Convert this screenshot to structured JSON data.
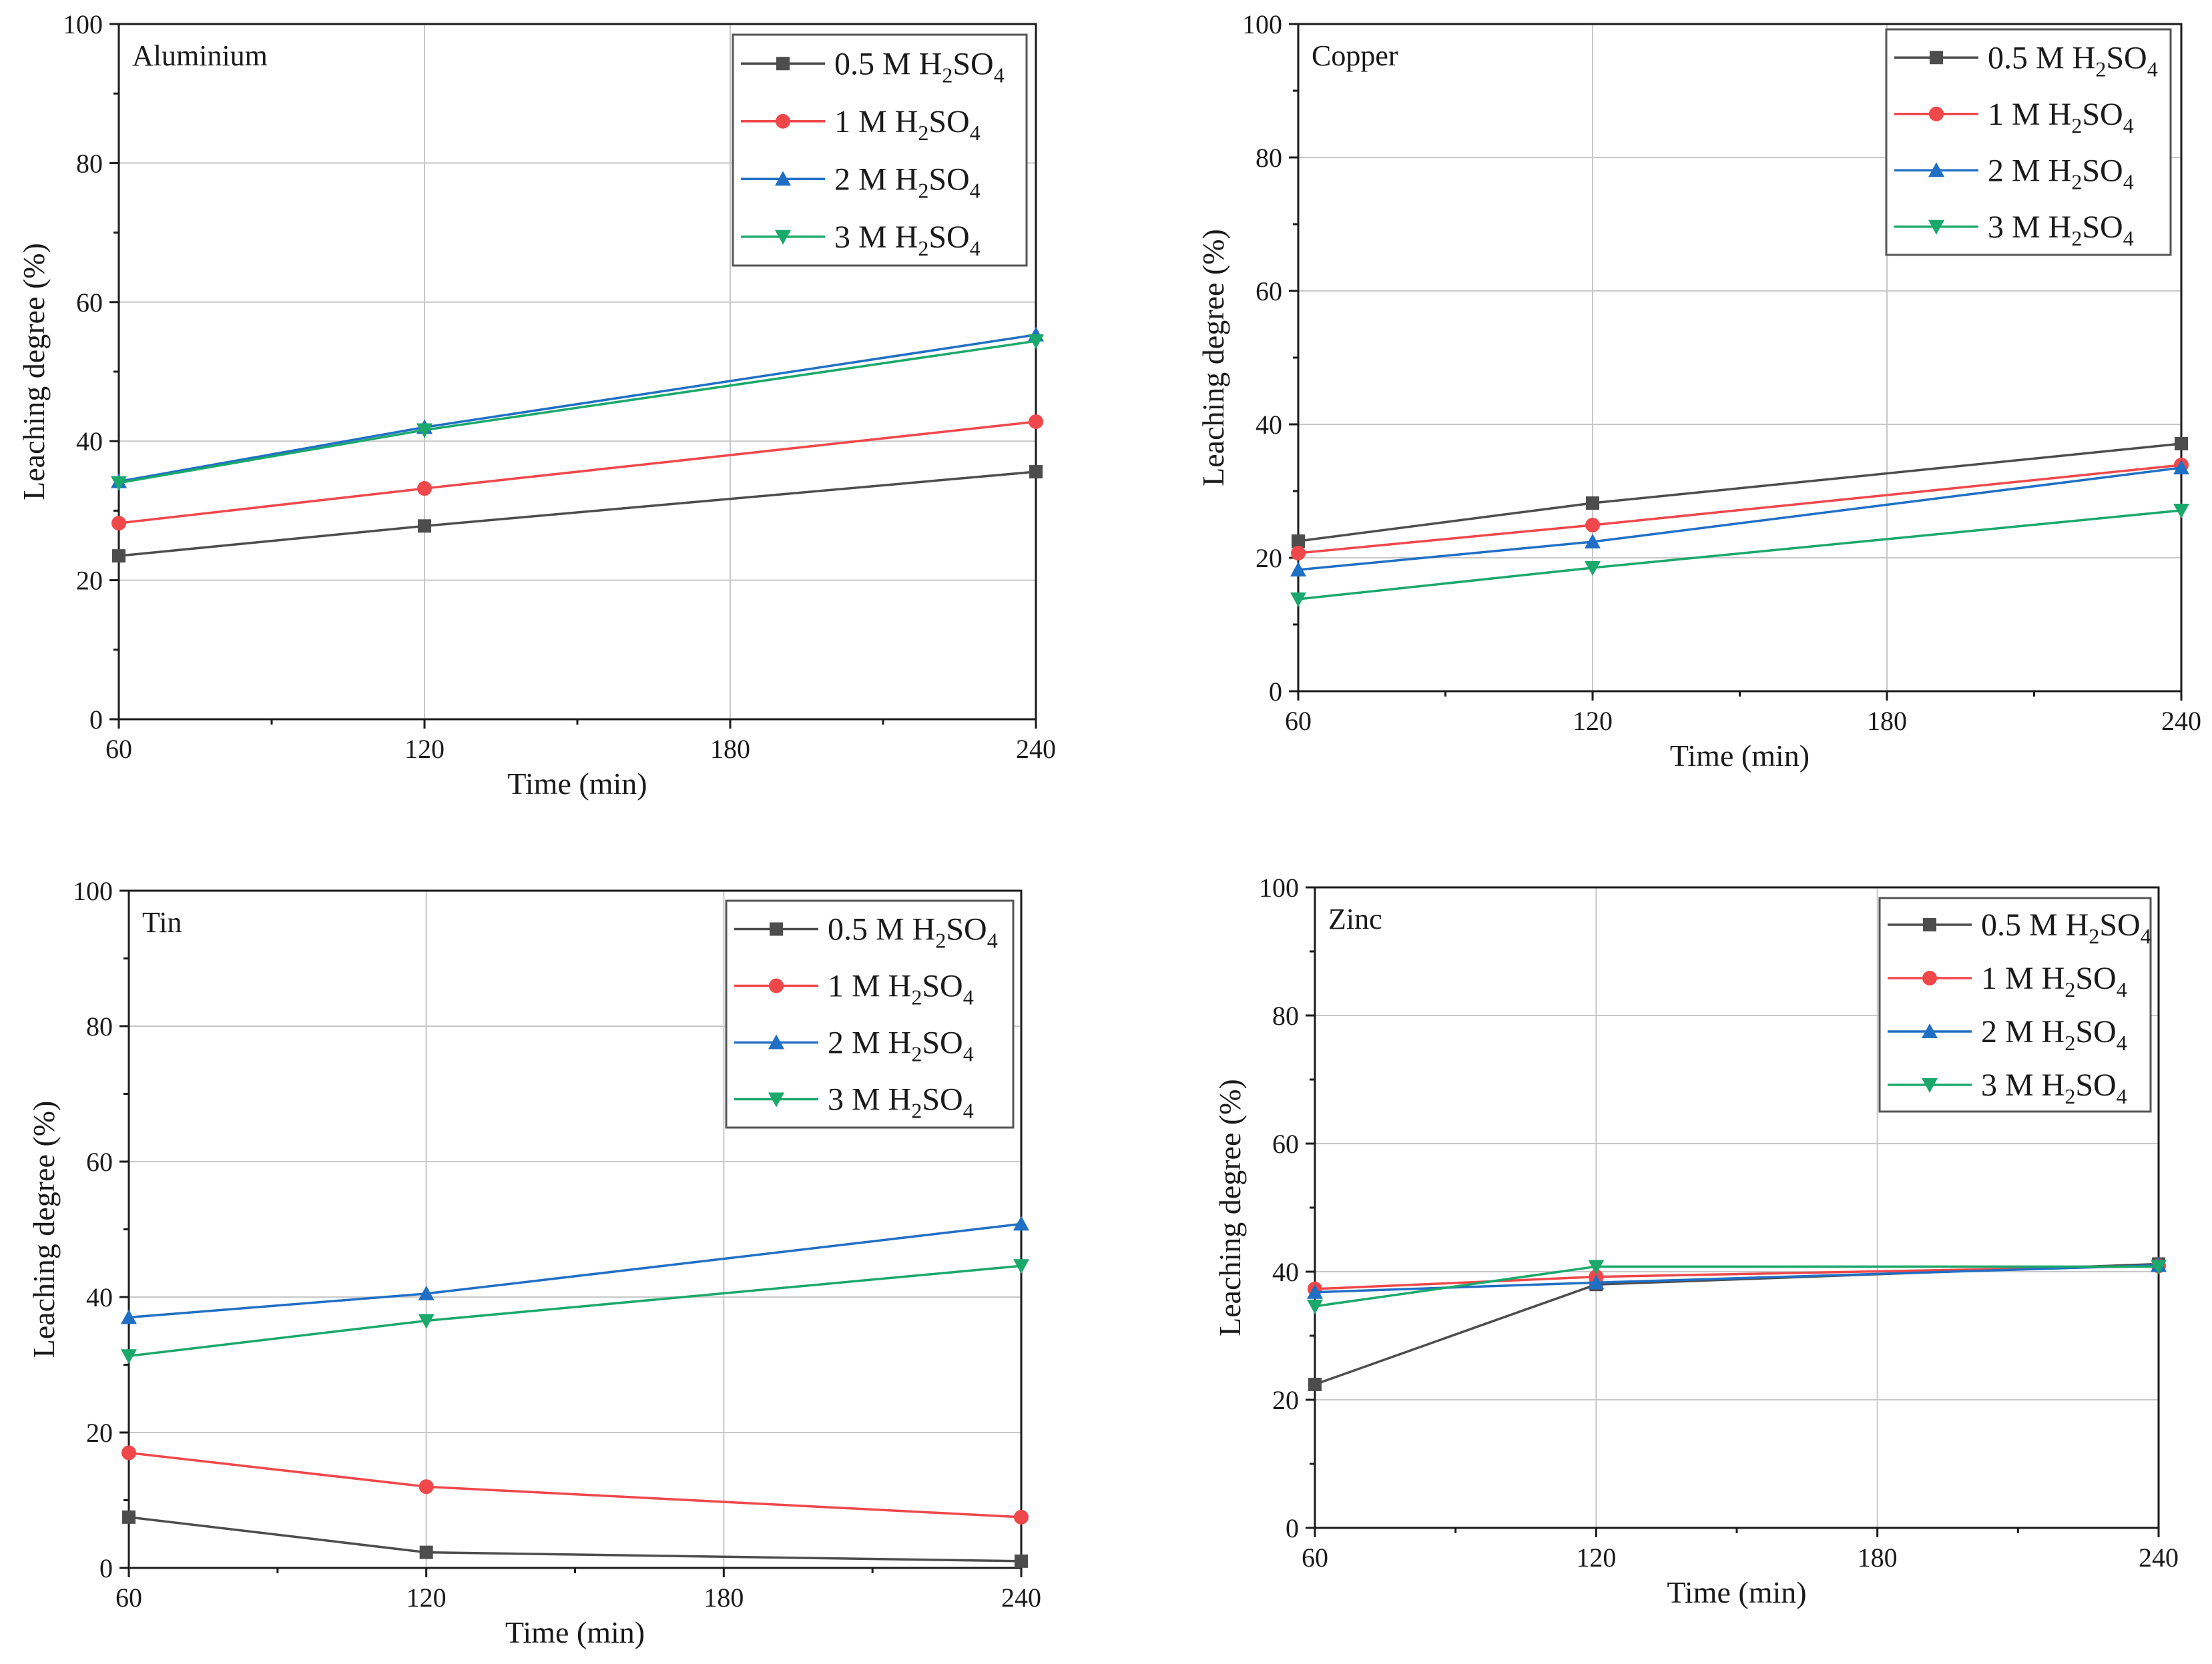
{
  "chart_data": [
    {
      "type": "line",
      "title": "Aluminium",
      "xlabel": "Time (min)",
      "ylabel": "Leaching degree (%)",
      "x": [
        60,
        120,
        240
      ],
      "xticks": [
        "60",
        "120",
        "180",
        "240"
      ],
      "yticks": [
        "0",
        "20",
        "40",
        "60",
        "80",
        "100"
      ],
      "xlim": [
        60,
        240
      ],
      "ylim": [
        0,
        100
      ],
      "grid": true,
      "legend_position": "top-right",
      "series": [
        {
          "name": "0.5 M H2SO4",
          "label_main": "0.5 M H",
          "label_sub1": "2",
          "label_mid": "SO",
          "label_sub2": "4",
          "values": [
            23.5,
            27.8,
            35.6
          ]
        },
        {
          "name": "1 M H2SO4",
          "label_main": "1 M H",
          "label_sub1": "2",
          "label_mid": "SO",
          "label_sub2": "4",
          "values": [
            28.2,
            33.2,
            42.8
          ]
        },
        {
          "name": "2 M H2SO4",
          "label_main": "2 M H",
          "label_sub1": "2",
          "label_mid": "SO",
          "label_sub2": "4",
          "values": [
            34.2,
            42.0,
            55.3
          ]
        },
        {
          "name": "3 M H2SO4",
          "label_main": "3 M H",
          "label_sub1": "2",
          "label_mid": "SO",
          "label_sub2": "4",
          "values": [
            34.0,
            41.6,
            54.4
          ]
        }
      ]
    },
    {
      "type": "line",
      "title": "Copper",
      "xlabel": "Time (min)",
      "ylabel": "Leaching degree (%)",
      "x": [
        60,
        120,
        240
      ],
      "xticks": [
        "60",
        "120",
        "180",
        "240"
      ],
      "yticks": [
        "0",
        "20",
        "40",
        "60",
        "80",
        "100"
      ],
      "xlim": [
        60,
        240
      ],
      "ylim": [
        0,
        100
      ],
      "grid": true,
      "legend_position": "top-right",
      "series": [
        {
          "name": "0.5 M H2SO4",
          "label_main": "0.5 M H",
          "label_sub1": "2",
          "label_mid": "SO",
          "label_sub2": "4",
          "values": [
            22.5,
            28.2,
            37.1
          ]
        },
        {
          "name": "1 M H2SO4",
          "label_main": "1 M H",
          "label_sub1": "2",
          "label_mid": "SO",
          "label_sub2": "4",
          "values": [
            20.7,
            24.9,
            33.9
          ]
        },
        {
          "name": "2 M H2SO4",
          "label_main": "2 M H",
          "label_sub1": "2",
          "label_mid": "SO",
          "label_sub2": "4",
          "values": [
            18.2,
            22.4,
            33.5
          ]
        },
        {
          "name": "3 M H2SO4",
          "label_main": "3 M H",
          "label_sub1": "2",
          "label_mid": "SO",
          "label_sub2": "4",
          "values": [
            13.8,
            18.5,
            27.1
          ]
        }
      ]
    },
    {
      "type": "line",
      "title": "Tin",
      "xlabel": "Time (min)",
      "ylabel": "Leaching degree (%)",
      "x": [
        60,
        120,
        240
      ],
      "xticks": [
        "60",
        "120",
        "180",
        "240"
      ],
      "yticks": [
        "0",
        "20",
        "40",
        "60",
        "80",
        "100"
      ],
      "xlim": [
        60,
        240
      ],
      "ylim": [
        0,
        100
      ],
      "grid": true,
      "legend_position": "top-right",
      "series": [
        {
          "name": "0.5 M H2SO4",
          "label_main": "0.5 M H",
          "label_sub1": "2",
          "label_mid": "SO",
          "label_sub2": "4",
          "values": [
            7.5,
            2.3,
            1.0
          ]
        },
        {
          "name": "1 M H2SO4",
          "label_main": "1 M H",
          "label_sub1": "2",
          "label_mid": "SO",
          "label_sub2": "4",
          "values": [
            17.0,
            12.0,
            7.5
          ]
        },
        {
          "name": "2 M H2SO4",
          "label_main": "2 M H",
          "label_sub1": "2",
          "label_mid": "SO",
          "label_sub2": "4",
          "values": [
            37.0,
            40.5,
            50.8
          ]
        },
        {
          "name": "3 M H2SO4",
          "label_main": "3 M H",
          "label_sub1": "2",
          "label_mid": "SO",
          "label_sub2": "4",
          "values": [
            31.3,
            36.5,
            44.6
          ]
        }
      ]
    },
    {
      "type": "line",
      "title": "Zinc",
      "xlabel": "Time (min)",
      "ylabel": "Leaching degree (%)",
      "x": [
        60,
        120,
        240
      ],
      "xticks": [
        "60",
        "120",
        "180",
        "240"
      ],
      "yticks": [
        "0",
        "20",
        "40",
        "60",
        "80",
        "100"
      ],
      "xlim": [
        60,
        240
      ],
      "ylim": [
        0,
        100
      ],
      "grid": true,
      "legend_position": "top-right",
      "series": [
        {
          "name": "0.5 M H2SO4",
          "label_main": "0.5 M H",
          "label_sub1": "2",
          "label_mid": "SO",
          "label_sub2": "4",
          "values": [
            22.4,
            38.0,
            41.2
          ]
        },
        {
          "name": "1 M H2SO4",
          "label_main": "1 M H",
          "label_sub1": "2",
          "label_mid": "SO",
          "label_sub2": "4",
          "values": [
            37.3,
            39.2,
            40.9
          ]
        },
        {
          "name": "2 M H2SO4",
          "label_main": "2 M H",
          "label_sub1": "2",
          "label_mid": "SO",
          "label_sub2": "4",
          "values": [
            36.8,
            38.3,
            41.0
          ]
        },
        {
          "name": "3 M H2SO4",
          "label_main": "3 M H",
          "label_sub1": "2",
          "label_mid": "SO",
          "label_sub2": "4",
          "values": [
            34.6,
            40.8,
            40.8
          ]
        }
      ]
    }
  ],
  "style": {
    "series_colors": [
      "#4d4d4d",
      "#f0474a",
      "#1f6fc5",
      "#1aa86b"
    ],
    "series_markers": [
      "square",
      "circle",
      "triangle-up",
      "triangle-down"
    ],
    "grid_color": "#c8c8c8",
    "axis_color": "#1a1a1a"
  }
}
